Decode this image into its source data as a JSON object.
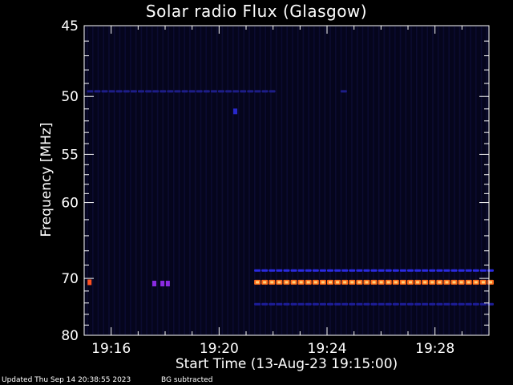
{
  "chart_data": {
    "type": "heatmap",
    "title": "Solar radio Flux (Glasgow)",
    "xlabel": "Start Time (13-Aug-23 19:15:00)",
    "ylabel": "Frequency [MHz]",
    "x_unit": "minutes",
    "xlim": [
      15.0,
      30.0
    ],
    "x_ticks": [
      {
        "value": 16,
        "label": "19:16"
      },
      {
        "value": 20,
        "label": "19:20"
      },
      {
        "value": 24,
        "label": "19:24"
      },
      {
        "value": 28,
        "label": "19:28"
      }
    ],
    "ylim": [
      45,
      80
    ],
    "y_scale": "reciprocal",
    "y_ticks": [
      45,
      50,
      55,
      60,
      70,
      80
    ],
    "y_minor_ticks": [
      46,
      47,
      48,
      49,
      51,
      52,
      53,
      54,
      56,
      57,
      58,
      59,
      62,
      64,
      66,
      68,
      72,
      74,
      76,
      78
    ],
    "background_color": "#05051c",
    "features": [
      {
        "kind": "dashed_band",
        "freq": 49.6,
        "x_start": 15.1,
        "x_end": 22.0,
        "color": "#1d1d88"
      },
      {
        "kind": "dashed_band",
        "freq": 49.6,
        "x_start": 24.5,
        "x_end": 24.8,
        "color": "#1d1d88"
      },
      {
        "kind": "spot",
        "freq": 51.2,
        "x": 20.6,
        "color": "#2828cc"
      },
      {
        "kind": "spot",
        "freq": 70.6,
        "x": 15.2,
        "color": "#ff5020"
      },
      {
        "kind": "spot",
        "freq": 70.8,
        "x": 17.6,
        "color": "#8a2be2"
      },
      {
        "kind": "spot",
        "freq": 70.8,
        "x": 17.9,
        "color": "#8a2be2"
      },
      {
        "kind": "spot",
        "freq": 70.8,
        "x": 18.1,
        "color": "#8a2be2"
      },
      {
        "kind": "dashed_band",
        "freq": 68.8,
        "x_start": 21.3,
        "x_end": 30.0,
        "color": "#2a2ae0"
      },
      {
        "kind": "dashed_band",
        "freq": 70.6,
        "x_start": 21.3,
        "x_end": 30.0,
        "color": "#ff6a1a"
      },
      {
        "kind": "dashed_band",
        "freq": 74.2,
        "x_start": 21.3,
        "x_end": 30.0,
        "color": "#1d1d99"
      }
    ]
  },
  "footer": {
    "updated": "Updated Thu Sep 14 20:38:55 2023",
    "note": "BG subtracted"
  }
}
